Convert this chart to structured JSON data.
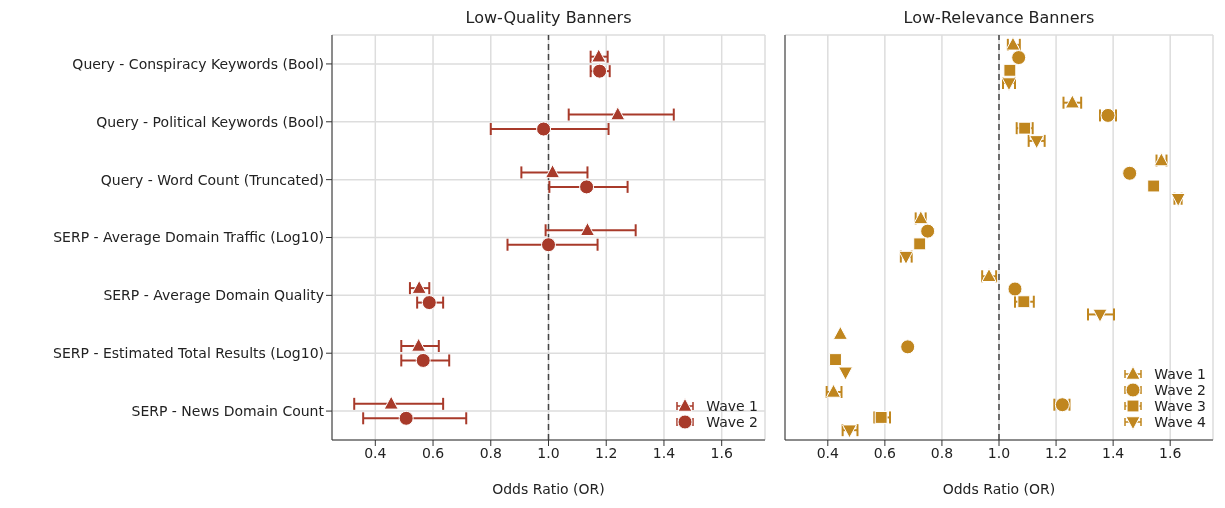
{
  "chart_data": [
    {
      "type": "scatter",
      "orientation": "horizontal",
      "title": "Low-Quality Banners",
      "xlabel": "Odds Ratio (OR)",
      "categories": [
        "Query - Conspiracy Keywords (Bool)",
        "Query - Political Keywords (Bool)",
        "Query - Word Count (Truncated)",
        "SERP - Average Domain Traffic (Log10)",
        "SERP - Average Domain Quality",
        "SERP - Estimated Total Results (Log10)",
        "SERP - News Domain Count"
      ],
      "xlim": [
        0.25,
        1.75
      ],
      "xticks": [
        {
          "value": 0.4,
          "label": "0.4"
        },
        {
          "value": 0.6,
          "label": "0.6"
        },
        {
          "value": 0.8,
          "label": "0.8"
        },
        {
          "value": 1.0,
          "label": "1.0"
        },
        {
          "value": 1.2,
          "label": "1.2"
        },
        {
          "value": 1.4,
          "label": "1.4"
        },
        {
          "value": 1.6,
          "label": "1.6"
        }
      ],
      "grid": true,
      "legend": "bottom right",
      "ref_lines": [
        {
          "axis": "x",
          "value": 1.0,
          "line_style": "dashed",
          "color": "#444444"
        }
      ],
      "series": [
        {
          "name": "Wave 1",
          "color": "#a83a2a",
          "marker": "triangle",
          "values": [
            1.174,
            1.24,
            1.014,
            1.135,
            0.552,
            0.55,
            0.455
          ],
          "errors": [
            [
              1.146,
              1.205
            ],
            [
              1.07,
              1.434
            ],
            [
              0.906,
              1.135
            ],
            [
              0.99,
              1.302
            ],
            [
              0.52,
              0.587
            ],
            [
              0.49,
              0.62
            ],
            [
              0.327,
              0.635
            ]
          ]
        },
        {
          "name": "Wave 2",
          "color": "#a83a2a",
          "marker": "circle",
          "values": [
            1.177,
            0.983,
            1.132,
            1.0,
            0.587,
            0.566,
            0.507
          ],
          "errors": [
            [
              1.146,
              1.212
            ],
            [
              0.8,
              1.208
            ],
            [
              1.003,
              1.274
            ],
            [
              0.858,
              1.17
            ],
            [
              0.545,
              0.635
            ],
            [
              0.49,
              0.656
            ],
            [
              0.358,
              0.715
            ]
          ]
        }
      ]
    },
    {
      "type": "scatter",
      "orientation": "horizontal",
      "title": "Low-Relevance Banners",
      "xlabel": "Odds Ratio (OR)",
      "categories": [
        null,
        null,
        null,
        null,
        null,
        null,
        null
      ],
      "tick_labels": "x",
      "xlim": [
        0.25,
        1.75
      ],
      "xticks": [
        {
          "value": 0.4,
          "label": "0.4"
        },
        {
          "value": 0.6,
          "label": "0.6"
        },
        {
          "value": 0.8,
          "label": "0.8"
        },
        {
          "value": 1.0,
          "label": "1.0"
        },
        {
          "value": 1.2,
          "label": "1.2"
        },
        {
          "value": 1.4,
          "label": "1.4"
        },
        {
          "value": 1.6,
          "label": "1.6"
        }
      ],
      "grid": true,
      "legend": "bottom right",
      "ref_lines": [
        {
          "axis": "x",
          "value": 1.0,
          "line_style": "dashed",
          "color": "#444444"
        }
      ],
      "series": [
        {
          "name": "Wave 1",
          "color": "#c0861e",
          "marker": "triangle",
          "values": [
            1.049,
            1.257,
            1.569,
            0.726,
            0.965,
            0.444,
            0.42
          ],
          "errors": [
            [
              1.031,
              1.073
            ],
            [
              1.226,
              1.288
            ],
            [
              1.552,
              1.587
            ],
            [
              0.708,
              0.743
            ],
            [
              0.941,
              0.99
            ],
            null,
            [
              0.396,
              0.448
            ]
          ]
        },
        {
          "name": "Wave 2",
          "color": "#c0861e",
          "marker": "circle",
          "values": [
            1.069,
            1.382,
            1.458,
            0.75,
            1.056,
            0.68,
            1.222
          ],
          "errors": [
            null,
            [
              1.354,
              1.41
            ],
            null,
            null,
            null,
            null,
            [
              1.194,
              1.247
            ]
          ]
        },
        {
          "name": "Wave 3",
          "color": "#c0861e",
          "marker": "square",
          "values": [
            1.038,
            1.09,
            1.542,
            0.722,
            1.087,
            0.427,
            0.587
          ],
          "errors": [
            null,
            [
              1.062,
              1.118
            ],
            null,
            null,
            [
              1.056,
              1.122
            ],
            null,
            [
              0.563,
              0.618
            ]
          ]
        },
        {
          "name": "Wave 4",
          "color": "#c0861e",
          "marker": "triangle-down",
          "values": [
            1.035,
            1.132,
            1.628,
            0.674,
            1.354,
            0.462,
            0.476
          ],
          "errors": [
            [
              1.014,
              1.056
            ],
            [
              1.104,
              1.16
            ],
            [
              1.615,
              1.64
            ],
            [
              0.656,
              0.694
            ],
            [
              1.312,
              1.403
            ],
            null,
            [
              0.452,
              0.504
            ]
          ]
        }
      ]
    }
  ]
}
